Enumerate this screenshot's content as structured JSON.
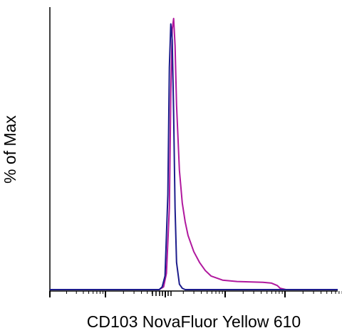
{
  "chart_data": {
    "type": "line",
    "title": "",
    "xlabel": "CD103 NovaFluor Yellow 610",
    "ylabel": "% of Max",
    "x_scale": "log",
    "x_tick_labels": [],
    "y_tick_labels": [],
    "grid": false,
    "legend": "none",
    "xlim": [
      0,
      1
    ],
    "ylim": [
      0,
      100
    ],
    "series": [
      {
        "color": "#b0189e",
        "x": [
          0.0,
          0.2,
          0.38,
          0.395,
          0.405,
          0.415,
          0.42,
          0.425,
          0.43,
          0.435,
          0.44,
          0.45,
          0.46,
          0.47,
          0.48,
          0.5,
          0.52,
          0.54,
          0.56,
          0.6,
          0.65,
          0.7,
          0.74,
          0.77,
          0.79,
          0.8,
          0.82,
          0.86,
          0.9,
          1.0
        ],
        "y": [
          0,
          0,
          0,
          1,
          6,
          30,
          72,
          96,
          100,
          90,
          68,
          44,
          32,
          25,
          20,
          14,
          10,
          7,
          5,
          3.5,
          3,
          2.8,
          2.7,
          2.4,
          1.5,
          0.5,
          0,
          0,
          0,
          0
        ]
      },
      {
        "color": "#1c1c8c",
        "x": [
          0.0,
          0.2,
          0.38,
          0.39,
          0.4,
          0.41,
          0.415,
          0.42,
          0.425,
          0.43,
          0.435,
          0.44,
          0.45,
          0.46,
          0.47,
          0.5,
          0.6,
          0.8,
          1.0
        ],
        "y": [
          0,
          0,
          0,
          1,
          5,
          35,
          82,
          98,
          92,
          65,
          30,
          10,
          2,
          0.5,
          0,
          0,
          0,
          0,
          0
        ]
      }
    ]
  }
}
